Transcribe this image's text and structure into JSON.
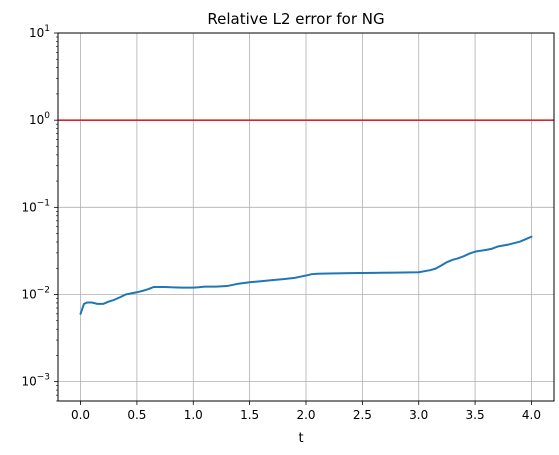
{
  "chart_data": {
    "type": "line",
    "title": "Relative L2 error for NG",
    "xlabel": "t",
    "ylabel": "",
    "x_scale": "linear",
    "y_scale": "log",
    "xlim": [
      -0.2,
      4.2
    ],
    "ylim": [
      0.0006,
      10
    ],
    "grid": true,
    "x_ticks": [
      0.0,
      0.5,
      1.0,
      1.5,
      2.0,
      2.5,
      3.0,
      3.5,
      4.0
    ],
    "x_tick_labels": [
      "0.0",
      "0.5",
      "1.0",
      "1.5",
      "2.0",
      "2.5",
      "3.0",
      "3.5",
      "4.0"
    ],
    "y_ticks": [
      0.001,
      0.01,
      0.1,
      1,
      10
    ],
    "y_tick_labels": [
      {
        "base": "10",
        "exp": "−3"
      },
      {
        "base": "10",
        "exp": "−2"
      },
      {
        "base": "10",
        "exp": "−1"
      },
      {
        "base": "10",
        "exp": "0"
      },
      {
        "base": "10",
        "exp": "1"
      }
    ],
    "hlines": [
      {
        "y": 1,
        "color": "#d62728"
      }
    ],
    "series": [
      {
        "color": "#1f77b4",
        "x": [
          0.0,
          0.03,
          0.06,
          0.1,
          0.15,
          0.2,
          0.25,
          0.3,
          0.35,
          0.4,
          0.45,
          0.5,
          0.55,
          0.6,
          0.65,
          0.7,
          0.75,
          0.8,
          0.9,
          1.0,
          1.05,
          1.1,
          1.2,
          1.3,
          1.4,
          1.5,
          1.6,
          1.7,
          1.8,
          1.9,
          1.95,
          2.0,
          2.05,
          2.1,
          2.2,
          2.4,
          2.6,
          2.8,
          3.0,
          3.1,
          3.15,
          3.2,
          3.25,
          3.3,
          3.35,
          3.4,
          3.45,
          3.5,
          3.55,
          3.6,
          3.65,
          3.7,
          3.8,
          3.9,
          4.0
        ],
        "y": [
          0.006,
          0.0078,
          0.0081,
          0.0081,
          0.0078,
          0.0078,
          0.0083,
          0.0087,
          0.0093,
          0.01,
          0.0103,
          0.0106,
          0.011,
          0.0115,
          0.0122,
          0.0122,
          0.0122,
          0.0121,
          0.012,
          0.012,
          0.0121,
          0.0123,
          0.0123,
          0.0125,
          0.0133,
          0.0138,
          0.0142,
          0.0146,
          0.015,
          0.0155,
          0.016,
          0.0165,
          0.0171,
          0.0173,
          0.0174,
          0.0176,
          0.0177,
          0.0178,
          0.018,
          0.019,
          0.0198,
          0.0215,
          0.0235,
          0.025,
          0.026,
          0.0275,
          0.0295,
          0.031,
          0.0318,
          0.0325,
          0.0335,
          0.0355,
          0.0375,
          0.0405,
          0.046
        ]
      }
    ]
  }
}
